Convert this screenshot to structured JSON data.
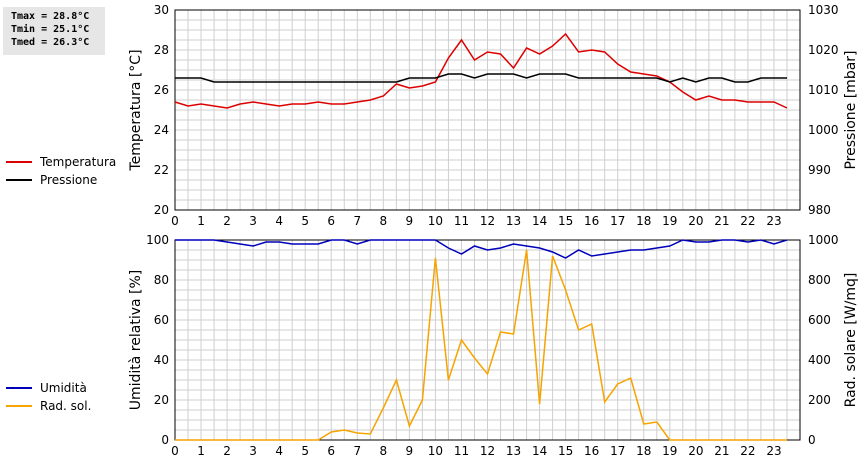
{
  "stats": {
    "tmax": "Tmax = 28.8°C",
    "tmin": "Tmin = 25.1°C",
    "tmed": "Tmed = 26.3°C"
  },
  "chart_data": [
    {
      "type": "line",
      "ylabel": "Temperatura [°C]",
      "y2label": "Pressione [mbar]",
      "ylim": [
        20,
        30
      ],
      "y2lim": [
        980,
        1030
      ],
      "xlim": [
        0,
        24
      ],
      "x_ticks": [
        "0",
        "1",
        "2",
        "3",
        "4",
        "5",
        "6",
        "7",
        "8",
        "9",
        "10",
        "11",
        "12",
        "13",
        "14",
        "15",
        "16",
        "17",
        "18",
        "19",
        "20",
        "21",
        "22",
        "23"
      ],
      "y_ticks": [
        "20",
        "22",
        "24",
        "26",
        "28",
        "30"
      ],
      "y2_ticks": [
        "980",
        "990",
        "1000",
        "1010",
        "1020",
        "1030"
      ],
      "grid": true,
      "legend_position": "left",
      "series": [
        {
          "name": "Temperatura",
          "color": "#dd0000",
          "axis": "left",
          "x": [
            0,
            0.5,
            1,
            1.5,
            2,
            2.5,
            3,
            3.5,
            4,
            4.5,
            5,
            5.5,
            6,
            6.5,
            7,
            7.5,
            8,
            8.5,
            9,
            9.5,
            10,
            10.5,
            11,
            11.5,
            12,
            12.5,
            13,
            13.5,
            14,
            14.5,
            15,
            15.5,
            16,
            16.5,
            17,
            17.5,
            18,
            18.5,
            19,
            19.5,
            20,
            20.5,
            21,
            21.5,
            22,
            22.5,
            23,
            23.5
          ],
          "values": [
            25.4,
            25.2,
            25.3,
            25.2,
            25.1,
            25.3,
            25.4,
            25.3,
            25.2,
            25.3,
            25.3,
            25.4,
            25.3,
            25.3,
            25.4,
            25.5,
            25.7,
            26.3,
            26.1,
            26.2,
            26.4,
            27.6,
            28.5,
            27.5,
            27.9,
            27.8,
            27.1,
            28.1,
            27.8,
            28.2,
            28.8,
            27.9,
            28.0,
            27.9,
            27.3,
            26.9,
            26.8,
            26.7,
            26.4,
            25.9,
            25.5,
            25.7,
            25.5,
            25.5,
            25.4,
            25.4,
            25.4,
            25.1
          ]
        },
        {
          "name": "Pressione",
          "color": "#000000",
          "axis": "right",
          "x": [
            0,
            0.5,
            1,
            1.5,
            2,
            2.5,
            3,
            3.5,
            4,
            4.5,
            5,
            5.5,
            6,
            6.5,
            7,
            7.5,
            8,
            8.5,
            9,
            9.5,
            10,
            10.5,
            11,
            11.5,
            12,
            12.5,
            13,
            13.5,
            14,
            14.5,
            15,
            15.5,
            16,
            16.5,
            17,
            17.5,
            18,
            18.5,
            19,
            19.5,
            20,
            20.5,
            21,
            21.5,
            22,
            22.5,
            23,
            23.5
          ],
          "values": [
            1013,
            1013,
            1013,
            1012,
            1012,
            1012,
            1012,
            1012,
            1012,
            1012,
            1012,
            1012,
            1012,
            1012,
            1012,
            1012,
            1012,
            1012,
            1013,
            1013,
            1013,
            1014,
            1014,
            1013,
            1014,
            1014,
            1014,
            1013,
            1014,
            1014,
            1014,
            1013,
            1013,
            1013,
            1013,
            1013,
            1013,
            1013,
            1012,
            1013,
            1012,
            1013,
            1013,
            1012,
            1012,
            1013,
            1013,
            1013
          ]
        }
      ]
    },
    {
      "type": "line",
      "ylabel": "Umidità relativa [%]",
      "y2label": "Rad. solare [W/mq]",
      "ylim": [
        0,
        100
      ],
      "y2lim": [
        0,
        1000
      ],
      "xlim": [
        0,
        24
      ],
      "x_ticks": [
        "0",
        "1",
        "2",
        "3",
        "4",
        "5",
        "6",
        "7",
        "8",
        "9",
        "10",
        "11",
        "12",
        "13",
        "14",
        "15",
        "16",
        "17",
        "18",
        "19",
        "20",
        "21",
        "22",
        "23"
      ],
      "y_ticks": [
        "0",
        "20",
        "40",
        "60",
        "80",
        "100"
      ],
      "y2_ticks": [
        "0",
        "200",
        "400",
        "600",
        "800",
        "1000"
      ],
      "grid": true,
      "legend_position": "left",
      "series": [
        {
          "name": "Umidità",
          "color": "#0000bb",
          "axis": "left",
          "x": [
            0,
            0.5,
            1,
            1.5,
            2,
            2.5,
            3,
            3.5,
            4,
            4.5,
            5,
            5.5,
            6,
            6.5,
            7,
            7.5,
            8,
            8.5,
            9,
            9.5,
            10,
            10.5,
            11,
            11.5,
            12,
            12.5,
            13,
            13.5,
            14,
            14.5,
            15,
            15.5,
            16,
            16.5,
            17,
            17.5,
            18,
            18.5,
            19,
            19.5,
            20,
            20.5,
            21,
            21.5,
            22,
            22.5,
            23,
            23.5
          ],
          "values": [
            100,
            100,
            100,
            100,
            99,
            98,
            97,
            99,
            99,
            98,
            98,
            98,
            100,
            100,
            98,
            100,
            100,
            100,
            100,
            100,
            100,
            96,
            93,
            97,
            95,
            96,
            98,
            97,
            96,
            94,
            91,
            95,
            92,
            93,
            94,
            95,
            95,
            96,
            97,
            100,
            99,
            99,
            100,
            100,
            99,
            100,
            98,
            100
          ]
        },
        {
          "name": "Rad. sol.",
          "color": "#f5a400",
          "axis": "right",
          "x": [
            0,
            0.5,
            1,
            1.5,
            2,
            2.5,
            3,
            3.5,
            4,
            4.5,
            5,
            5.5,
            6,
            6.5,
            7,
            7.5,
            8,
            8.5,
            9,
            9.5,
            10,
            10.5,
            11,
            11.5,
            12,
            12.5,
            13,
            13.5,
            14,
            14.5,
            15,
            15.5,
            16,
            16.5,
            17,
            17.5,
            18,
            18.5,
            19,
            19.5,
            20,
            20.5,
            21,
            21.5,
            22,
            22.5,
            23,
            23.5
          ],
          "values": [
            0,
            0,
            0,
            0,
            0,
            0,
            0,
            0,
            0,
            0,
            0,
            0,
            40,
            50,
            35,
            30,
            160,
            300,
            70,
            200,
            910,
            300,
            500,
            410,
            330,
            540,
            530,
            950,
            180,
            920,
            750,
            550,
            580,
            190,
            280,
            310,
            80,
            90,
            0,
            0,
            0,
            0,
            0,
            0,
            0,
            0,
            0,
            0
          ]
        }
      ]
    }
  ]
}
